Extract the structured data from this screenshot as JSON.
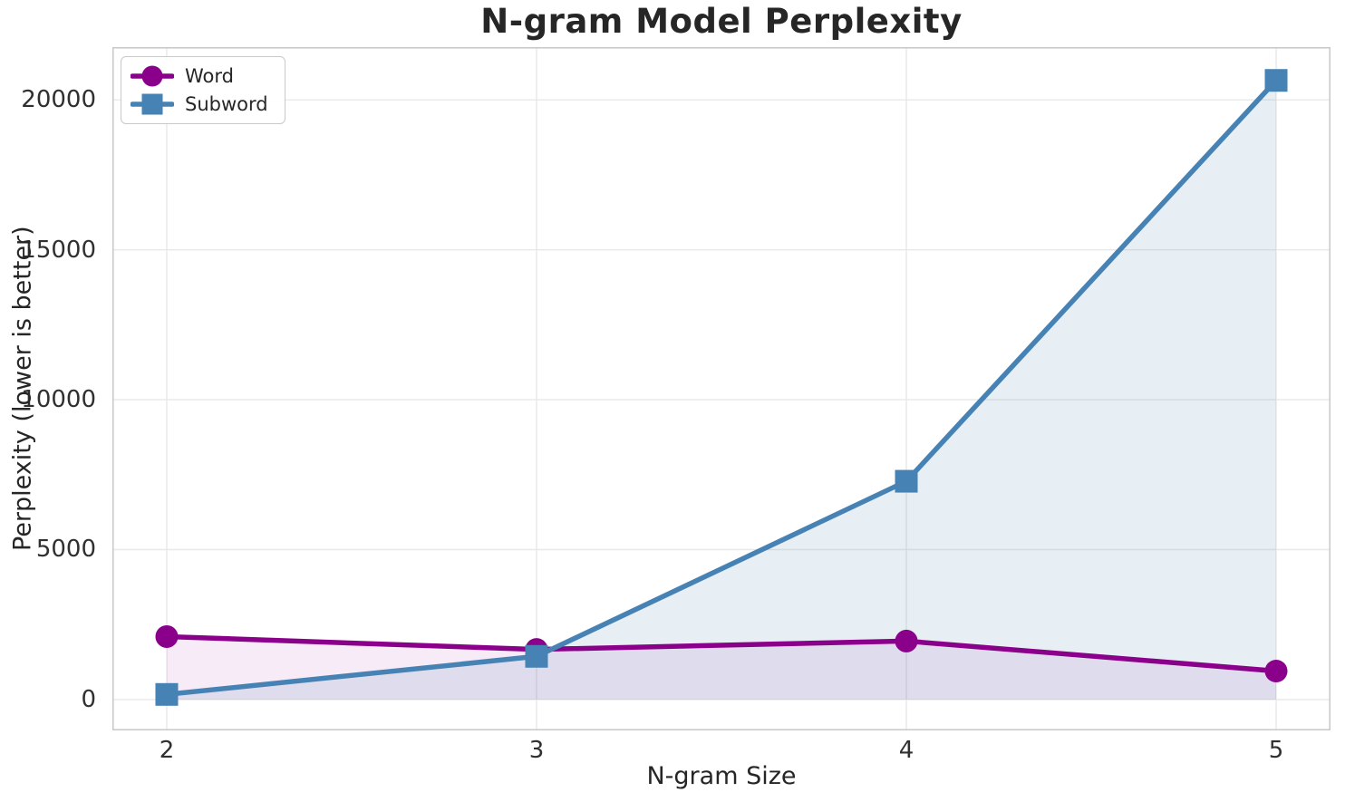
{
  "figure": {
    "background": "#ffffff",
    "grid_color": "#e8e8e8",
    "spine_color": "#c9c9c9",
    "text_color": "#262626"
  },
  "chart_data": {
    "type": "line",
    "title": "N-gram Model Perplexity",
    "xlabel": "N-gram Size",
    "ylabel": "Perplexity (lower is better)",
    "x": [
      2,
      3,
      4,
      5
    ],
    "xticks": [
      2,
      3,
      4,
      5
    ],
    "yticks": [
      0,
      5000,
      10000,
      15000,
      20000
    ],
    "xlim": [
      1.853,
      5.147
    ],
    "ylim": [
      -1030,
      21760
    ],
    "grid": true,
    "area_fill": true,
    "legend_position": "upper-left",
    "series": [
      {
        "name": "Word",
        "color": "#8b008b",
        "marker": "circle",
        "fill_opacity": 0.08,
        "values": [
          2100,
          1670,
          1950,
          950
        ]
      },
      {
        "name": "Subword",
        "color": "#4682b4",
        "marker": "square",
        "fill_opacity": 0.13,
        "values": [
          170,
          1440,
          7280,
          20650
        ]
      }
    ]
  }
}
